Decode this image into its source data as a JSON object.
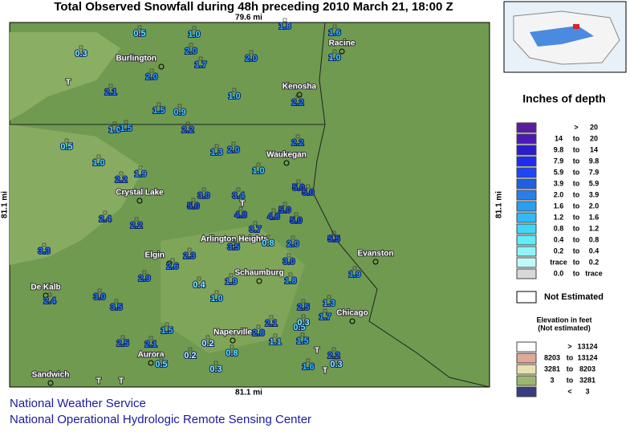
{
  "header": {
    "title": "Total Observed Snowfall during 48h preceding 2010 March 21, 18:00 Z"
  },
  "map": {
    "scale_top": "79.6 mi",
    "scale_bottom": "81.1 mi",
    "scale_left": "81.1 mi",
    "scale_right": "81.1 mi",
    "cities": [
      "Burlington",
      "Racine",
      "Kenosha",
      "Waukegan",
      "Crystal Lake",
      "Elgin",
      "Arlington Heights",
      "Schaumburg",
      "Evanston",
      "De Kalb",
      "Chicago",
      "Naperville",
      "Aurora",
      "Sandwich"
    ],
    "trace_marker": "T",
    "stations": [
      "0.5",
      "1.0",
      "1.8",
      "1.6",
      "0.3",
      "2.0",
      "1.7",
      "2.0",
      "1.0",
      "2.1",
      "2.0",
      "1.0",
      "2.2",
      "1.5",
      "0.9",
      "1.0",
      "1.5",
      "2.2",
      "0.5",
      "2.2",
      "1.3",
      "2.0",
      "1.0",
      "1.0",
      "2.2",
      "1.9",
      "3.0",
      "5.0",
      "3.4",
      "5.0",
      "5.0",
      "2.4",
      "2.2",
      "4.8",
      "4.8",
      "5.0",
      "5.0",
      "3.7",
      "5.5",
      "3.3",
      "3.5",
      "0.8",
      "2.0",
      "2.3",
      "2.6",
      "3.0",
      "1.9",
      "1.8",
      "1.9",
      "2.9",
      "0.4",
      "2.4",
      "3.0",
      "3.5",
      "1.0",
      "1.3",
      "2.5",
      "1.7",
      "0.5",
      "0.3",
      "1.5",
      "2.5",
      "2.1",
      "0.2",
      "2.8",
      "2.1",
      "1.1",
      "1.5",
      "0.2",
      "0.5",
      "0.3",
      "2.2",
      "1.6",
      "0.3",
      "0.8"
    ]
  },
  "legend": {
    "title": "Inches of depth",
    "rows": [
      {
        "label": [
          ">",
          "20"
        ],
        "color": "#5a1ea0"
      },
      {
        "label": [
          "14",
          "to",
          "20"
        ],
        "color": "#4b18b8"
      },
      {
        "label": [
          "9.8",
          "to",
          "14"
        ],
        "color": "#2a1ad0"
      },
      {
        "label": [
          "7.9",
          "to",
          "9.8"
        ],
        "color": "#1f2cf0"
      },
      {
        "label": [
          "5.9",
          "to",
          "7.9"
        ],
        "color": "#1e46f5"
      },
      {
        "label": [
          "3.9",
          "to",
          "5.9"
        ],
        "color": "#2060e0"
      },
      {
        "label": [
          "2.0",
          "to",
          "3.9"
        ],
        "color": "#2a7ee8"
      },
      {
        "label": [
          "1.6",
          "to",
          "2.0"
        ],
        "color": "#2a9ff0"
      },
      {
        "label": [
          "1.2",
          "to",
          "1.6"
        ],
        "color": "#30bbf8"
      },
      {
        "label": [
          "0.8",
          "to",
          "1.2"
        ],
        "color": "#40d6f8"
      },
      {
        "label": [
          "0.4",
          "to",
          "0.8"
        ],
        "color": "#60ecf8"
      },
      {
        "label": [
          "0.2",
          "to",
          "0.4"
        ],
        "color": "#90f4f8"
      },
      {
        "label": [
          "trace",
          "to",
          "0.2"
        ],
        "color": "#c0f8f8"
      },
      {
        "label": [
          "0.0",
          "to",
          "trace"
        ],
        "color": "#d8d8d8"
      }
    ],
    "not_estimated": "Not Estimated",
    "elevation_title": "Elevation in feet",
    "elevation_subtitle": "(Not estimated)",
    "elevation_rows": [
      {
        "label": [
          ">",
          "13124"
        ],
        "color": "#ffffff"
      },
      {
        "label": [
          "8203",
          "to",
          "13124"
        ],
        "color": "#e0a898"
      },
      {
        "label": [
          "3281",
          "to",
          "8203"
        ],
        "color": "#e8e0b0"
      },
      {
        "label": [
          "3",
          "to",
          "3281"
        ],
        "color": "#9ab870"
      },
      {
        "label": [
          "<",
          "3"
        ],
        "color": "#383c80"
      }
    ]
  },
  "footer": {
    "line1": "National Weather Service",
    "line2": "National Operational Hydrologic Remote Sensing Center"
  }
}
